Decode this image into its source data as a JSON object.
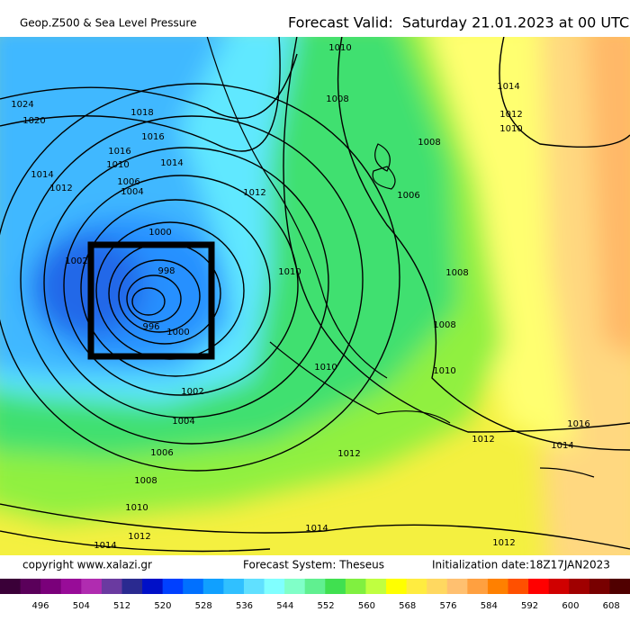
{
  "header": {
    "title": "Geop.Z500 & Sea Level Pressure",
    "valid": "Forecast Valid:  Saturday 21.01.2023 at 00 UTC"
  },
  "footer": {
    "copyright": "copyright www.xalazi.gr",
    "system": "Forecast System: Theseus",
    "init": "Initialization date:18Z17JAN2023"
  },
  "colorbar": {
    "labels": [
      496,
      504,
      512,
      520,
      528,
      536,
      544,
      552,
      560,
      568,
      576,
      584,
      592,
      600,
      608
    ]
  },
  "isobar_labels": [
    1010,
    1014,
    1008,
    1012,
    1010,
    1008,
    1024,
    1020,
    1018,
    1016,
    1016,
    1014,
    1010,
    1014,
    1012,
    1006,
    1004,
    1012,
    1006,
    1000,
    1002,
    998,
    1010,
    1008,
    996,
    1000,
    1008,
    1010,
    1010,
    1002,
    1004,
    1016,
    1014,
    1012,
    1006,
    1012,
    1008,
    1010,
    1014,
    1012,
    1014,
    1012
  ]
}
